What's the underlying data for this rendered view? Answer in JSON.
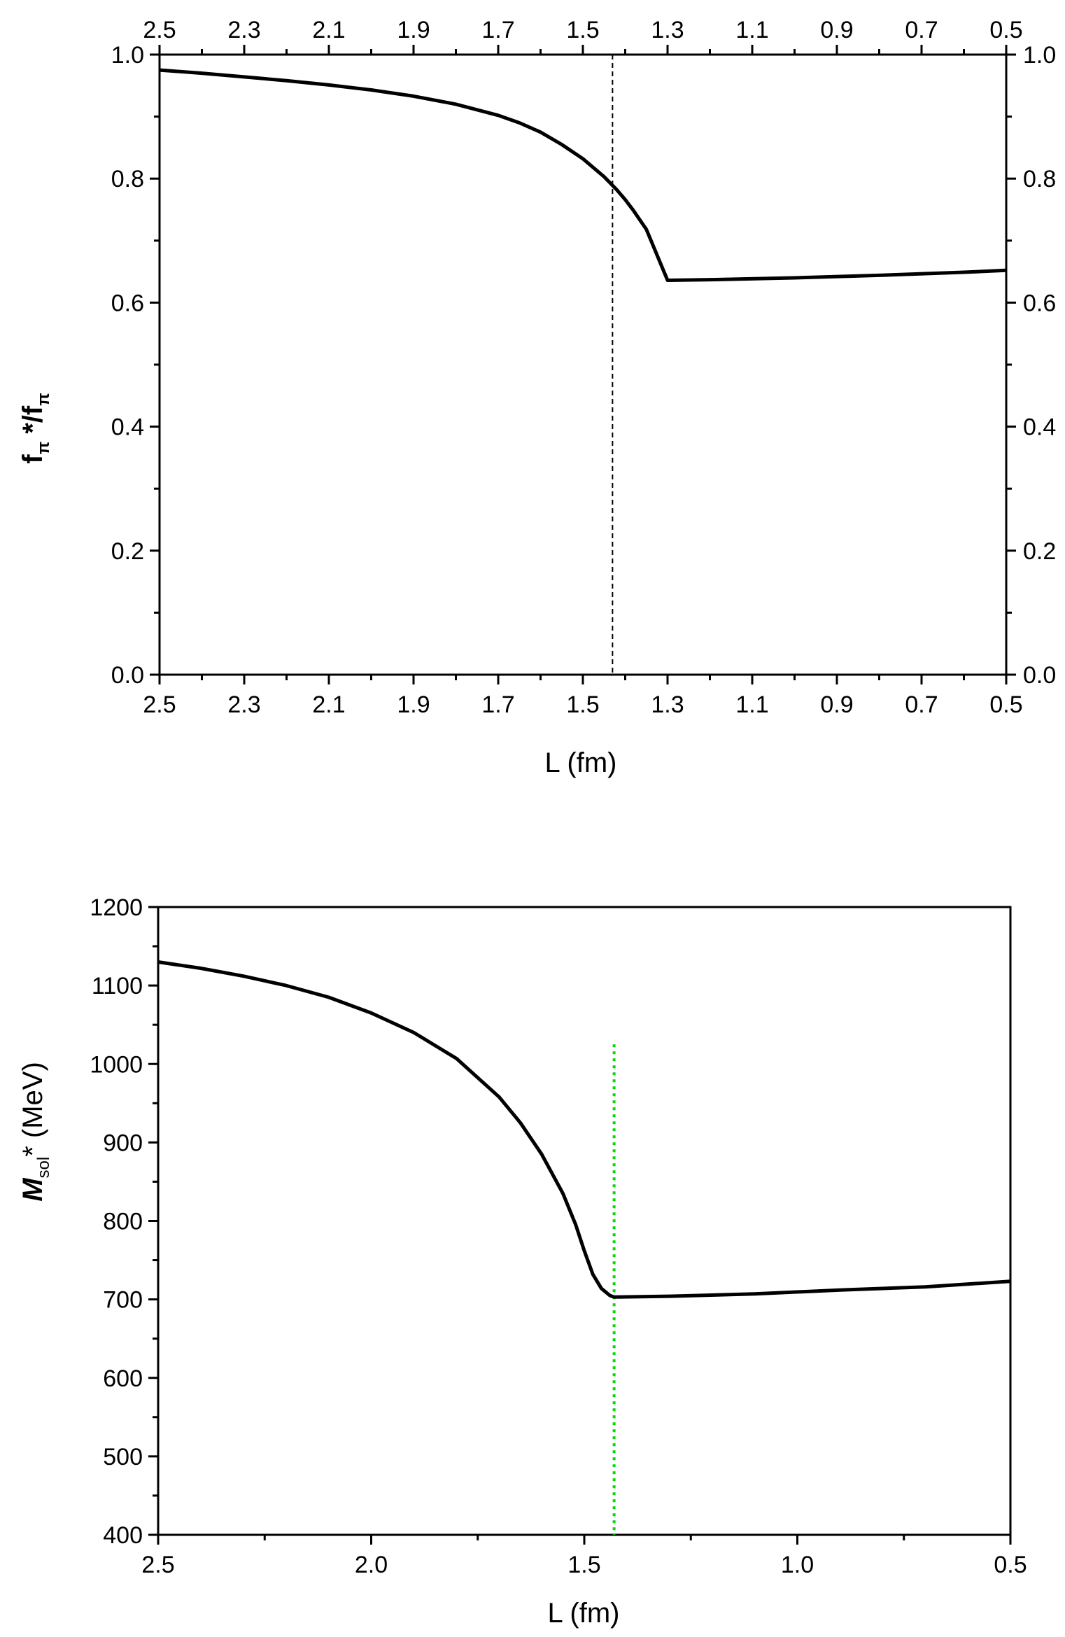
{
  "chart_data": [
    {
      "type": "line",
      "xlabel": "L (fm)",
      "ylabel": {
        "main": "f",
        "sub": "π",
        "mid": " *",
        "main2": "/f",
        "sub2": "π"
      },
      "xlim": [
        2.5,
        0.5
      ],
      "ylim": [
        0.0,
        1.0
      ],
      "x_ticks": [
        "2.5",
        "2.3",
        "2.1",
        "1.9",
        "1.7",
        "1.5",
        "1.3",
        "1.1",
        "0.9",
        "0.7",
        "0.5"
      ],
      "x_tick_values": [
        2.5,
        2.3,
        2.1,
        1.9,
        1.7,
        1.5,
        1.3,
        1.1,
        0.9,
        0.7,
        0.5
      ],
      "top_ticks": [
        "2.5",
        "2.3",
        "2.1",
        "1.9",
        "1.7",
        "1.5",
        "1.3",
        "1.1",
        "0.9",
        "0.7",
        "0.5"
      ],
      "y_ticks": [
        "0.0",
        "0.2",
        "0.4",
        "0.6",
        "0.8",
        "1.0"
      ],
      "y_tick_values": [
        0.0,
        0.2,
        0.4,
        0.6,
        0.8,
        1.0
      ],
      "right_ticks": [
        "0.0",
        "0.2",
        "0.4",
        "0.6",
        "0.8",
        "1.0"
      ],
      "series": [
        {
          "color": "#000000",
          "x": [
            2.5,
            2.4,
            2.3,
            2.2,
            2.1,
            2.0,
            1.9,
            1.8,
            1.7,
            1.65,
            1.6,
            1.55,
            1.5,
            1.45,
            1.42,
            1.4,
            1.38,
            1.35,
            1.3,
            1.2,
            1.0,
            0.8,
            0.6,
            0.5
          ],
          "y": [
            0.975,
            0.97,
            0.964,
            0.958,
            0.951,
            0.943,
            0.933,
            0.92,
            0.902,
            0.89,
            0.875,
            0.855,
            0.832,
            0.803,
            0.782,
            0.766,
            0.748,
            0.718,
            0.636,
            0.637,
            0.64,
            0.644,
            0.649,
            0.652
          ]
        }
      ],
      "vline": {
        "x": 1.43,
        "style": "dashed",
        "color": "#000000"
      }
    },
    {
      "type": "line",
      "xlabel": "L (fm)",
      "ylabel": {
        "main": "M",
        "sub": "sol",
        "mid": "* (MeV)"
      },
      "xlim": [
        2.5,
        0.5
      ],
      "ylim": [
        400,
        1200
      ],
      "x_ticks": [
        "2.5",
        "2.0",
        "1.5",
        "1.0",
        "0.5"
      ],
      "x_tick_values": [
        2.5,
        2.0,
        1.5,
        1.0,
        0.5
      ],
      "y_ticks": [
        "400",
        "500",
        "600",
        "700",
        "800",
        "900",
        "1000",
        "1100",
        "1200"
      ],
      "y_tick_values": [
        400,
        500,
        600,
        700,
        800,
        900,
        1000,
        1100,
        1200
      ],
      "series": [
        {
          "color": "#000000",
          "x": [
            2.5,
            2.4,
            2.3,
            2.2,
            2.1,
            2.0,
            1.9,
            1.8,
            1.7,
            1.65,
            1.6,
            1.55,
            1.52,
            1.5,
            1.48,
            1.46,
            1.44,
            1.43,
            1.3,
            1.1,
            0.9,
            0.7,
            0.5
          ],
          "y": [
            1130,
            1122,
            1112,
            1100,
            1085,
            1065,
            1040,
            1007,
            958,
            925,
            885,
            835,
            795,
            762,
            732,
            714,
            705,
            703,
            704,
            707,
            712,
            716,
            723
          ]
        }
      ],
      "vline": {
        "x": 1.43,
        "style": "dotted",
        "color": "#00dd00",
        "y_top": 1025
      }
    }
  ]
}
